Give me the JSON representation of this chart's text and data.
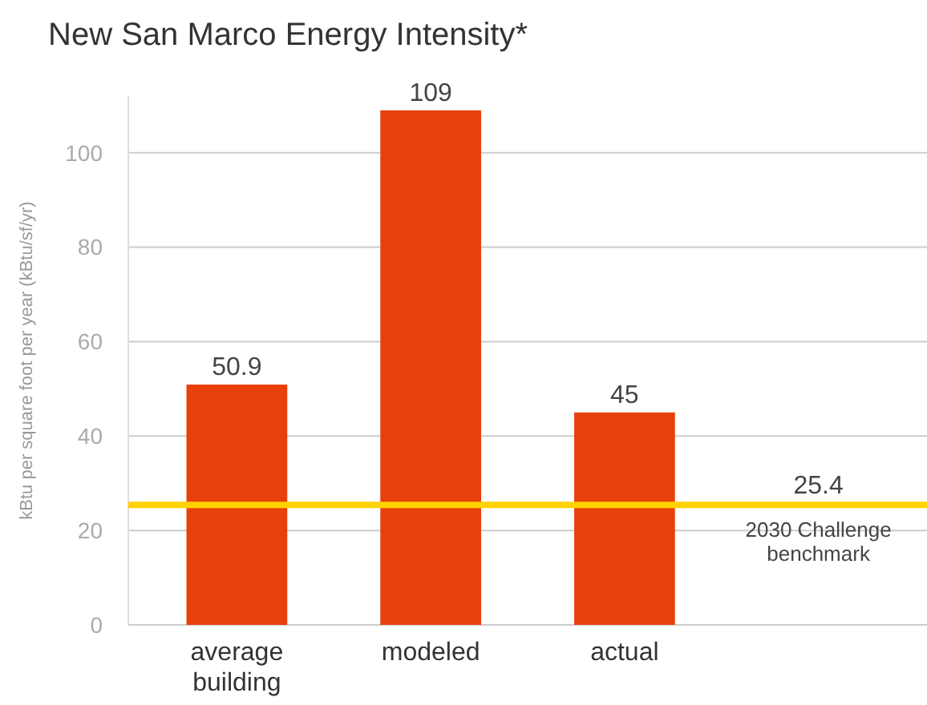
{
  "chart_data": {
    "type": "bar",
    "title": "New San Marco Energy Intensity*",
    "ylabel": "kBtu per square foot per year (kBtu/sf/yr)",
    "categories": [
      "average building",
      "modeled",
      "actual"
    ],
    "values": [
      50.9,
      109,
      45
    ],
    "color": "#e8400c",
    "ylim": [
      0,
      112
    ],
    "yticks": [
      0,
      20,
      40,
      60,
      80,
      100
    ],
    "grid": "y",
    "data_labels": true,
    "annotations": [
      {
        "text": "25.4",
        "y": 25.4
      }
    ],
    "ref_lines": [
      {
        "axis": "y",
        "value": 25.4,
        "label": "2030 Challenge benchmark",
        "color": "#ffd200"
      }
    ]
  }
}
